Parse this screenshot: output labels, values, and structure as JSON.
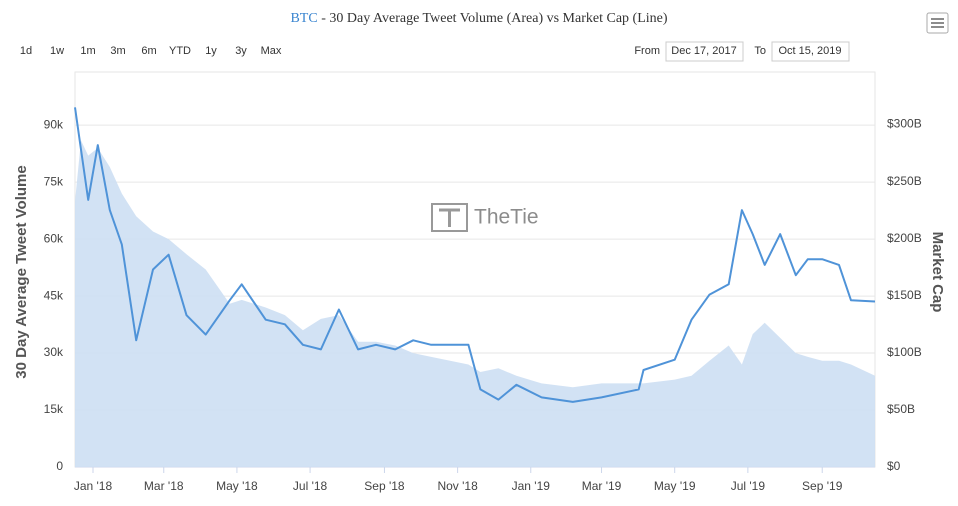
{
  "title_link": "BTC",
  "range_selector": {
    "buttons": [
      "1d",
      "1w",
      "1m",
      "3m",
      "6m",
      "YTD",
      "1y",
      "3y",
      "Max"
    ],
    "from_label": "From",
    "from": "Dec 17, 2017",
    "to_label": "To",
    "to": "Oct 15, 2019"
  },
  "watermark": "TheTie",
  "chart_data": {
    "type": "area-line",
    "title": "- 30 Day Average Tweet Volume (Area) vs Market Cap (Line)",
    "ylabel": "30 Day Average Tweet Volume",
    "y2label": "Market Cap",
    "grid": true,
    "x": [
      "2017-12-17",
      "2017-12-22",
      "2017-12-28",
      "2018-01-05",
      "2018-01-15",
      "2018-01-25",
      "2018-02-06",
      "2018-02-20",
      "2018-03-05",
      "2018-03-20",
      "2018-04-05",
      "2018-04-25",
      "2018-05-05",
      "2018-05-25",
      "2018-06-10",
      "2018-06-25",
      "2018-07-10",
      "2018-07-25",
      "2018-08-10",
      "2018-08-25",
      "2018-09-10",
      "2018-09-25",
      "2018-10-10",
      "2018-11-10",
      "2018-11-20",
      "2018-12-05",
      "2018-12-20",
      "2019-01-10",
      "2019-02-05",
      "2019-03-01",
      "2019-04-01",
      "2019-04-05",
      "2019-05-01",
      "2019-05-15",
      "2019-05-30",
      "2019-06-15",
      "2019-06-26",
      "2019-07-05",
      "2019-07-15",
      "2019-07-28",
      "2019-08-10",
      "2019-08-20",
      "2019-09-01",
      "2019-09-15",
      "2019-09-25",
      "2019-10-15"
    ],
    "xlim": [
      "2017-12-17",
      "2019-10-15"
    ],
    "xticks": [
      {
        "value": "2018-01-01",
        "label": "Jan '18"
      },
      {
        "value": "2018-03-01",
        "label": "Mar '18"
      },
      {
        "value": "2018-05-01",
        "label": "May '18"
      },
      {
        "value": "2018-07-01",
        "label": "Jul '18"
      },
      {
        "value": "2018-09-01",
        "label": "Sep '18"
      },
      {
        "value": "2018-11-01",
        "label": "Nov '18"
      },
      {
        "value": "2019-01-01",
        "label": "Jan '19"
      },
      {
        "value": "2019-03-01",
        "label": "Mar '19"
      },
      {
        "value": "2019-05-01",
        "label": "May '19"
      },
      {
        "value": "2019-07-01",
        "label": "Jul '19"
      },
      {
        "value": "2019-09-01",
        "label": "Sep '19"
      }
    ],
    "ylim": [
      0,
      104000
    ],
    "yticks": [
      0,
      {
        "value": 15000,
        "label": "15k"
      },
      {
        "value": 30000,
        "label": "30k"
      },
      {
        "value": 45000,
        "label": "45k"
      },
      {
        "value": 60000,
        "label": "60k"
      },
      {
        "value": 75000,
        "label": "75k"
      },
      {
        "value": 90000,
        "label": "90k"
      }
    ],
    "y2lim": [
      0,
      346
    ],
    "y2ticks": [
      {
        "value": 0,
        "label": "$0"
      },
      {
        "value": 50,
        "label": "$50B"
      },
      {
        "value": 100,
        "label": "$100B"
      },
      {
        "value": 150,
        "label": "$150B"
      },
      {
        "value": 200,
        "label": "$200B"
      },
      {
        "value": 250,
        "label": "$250B"
      },
      {
        "value": 300,
        "label": "$300B"
      }
    ],
    "series": [
      {
        "type": "area",
        "color": "#cddff3",
        "values": [
          70000,
          86000,
          82000,
          84000,
          79000,
          72000,
          66000,
          62000,
          60000,
          56000,
          52000,
          43000,
          44000,
          42000,
          40000,
          36000,
          39000,
          40000,
          33000,
          33000,
          32000,
          30000,
          29000,
          27000,
          25000,
          26000,
          24000,
          22000,
          21000,
          22000,
          22000,
          22000,
          23000,
          24000,
          28000,
          32000,
          27000,
          35000,
          38000,
          34000,
          30000,
          29000,
          28000,
          28000,
          27000,
          24000
        ]
      },
      {
        "type": "line",
        "axis": "y2",
        "color": "#4f93d8",
        "values": [
          315,
          278,
          234,
          282,
          225,
          195,
          111,
          173,
          186,
          133,
          116,
          146,
          160,
          129,
          125,
          107,
          103,
          138,
          103,
          107,
          103,
          111,
          107,
          107,
          68,
          59,
          72,
          61,
          57,
          61,
          68,
          85,
          94,
          129,
          151,
          160,
          225,
          204,
          177,
          204,
          168,
          182,
          182,
          177,
          146,
          145
        ]
      }
    ]
  }
}
